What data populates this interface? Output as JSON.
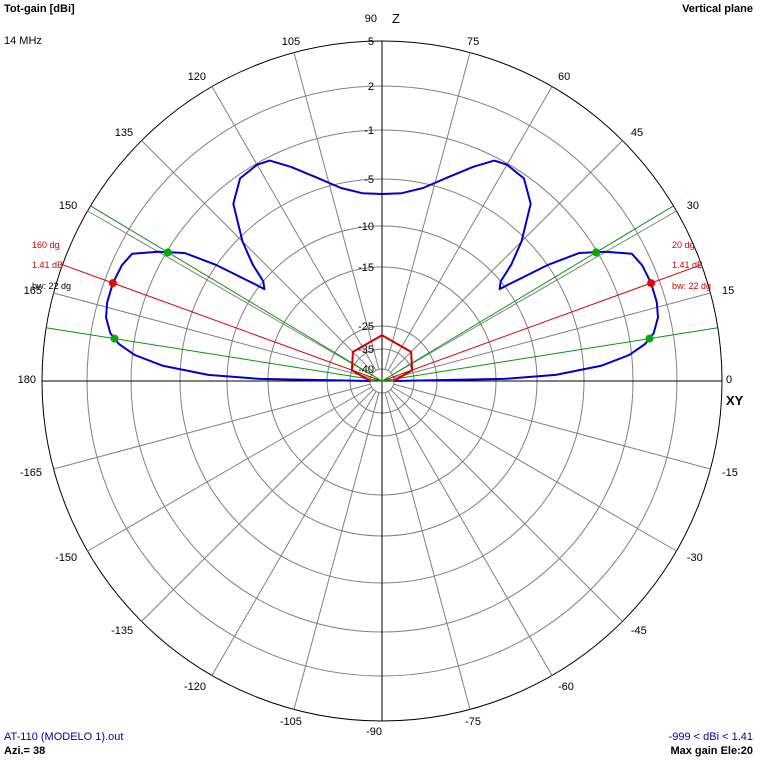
{
  "header": {
    "title": "Tot-gain [dBi]",
    "frequency": "14 MHz",
    "plane": "Vertical plane"
  },
  "footer": {
    "filename": "AT-110 (MODELO 1).out",
    "azimuth": "Azi.= 38",
    "gain_range": "-999 < dBi < 1.41",
    "max_gain": "Max gain Ele:20"
  },
  "chart_data": {
    "type": "polar-line",
    "title": "Tot-gain [dBi]",
    "angle_unit": "degrees",
    "radial_unit": "dBi",
    "radial_range": [
      -40,
      5
    ],
    "radial_ticks": [
      5,
      2,
      -1,
      -5,
      -10,
      -15,
      -25,
      -35,
      -40
    ],
    "radial_tick_labels": [
      "5",
      "2",
      "-1",
      "-5",
      "-10",
      "-15",
      "-25",
      "-35",
      "-40"
    ],
    "angle_ticks": [
      0,
      15,
      30,
      45,
      60,
      75,
      90,
      105,
      120,
      135,
      150,
      165,
      180,
      -165,
      -150,
      -135,
      -120,
      -105,
      -90,
      -75,
      -60,
      -45,
      -30,
      -15
    ],
    "angle_tick_labels": [
      "0",
      "15",
      "30",
      "45",
      "60",
      "75",
      "90",
      "105",
      "120",
      "135",
      "150",
      "165",
      "180",
      "-165",
      "-150",
      "-135",
      "-120",
      "-105",
      "-90",
      "-75",
      "-60",
      "-45",
      "-30",
      "-15"
    ],
    "axis_labels": {
      "up": "Z",
      "right": "XY"
    },
    "series": [
      {
        "color": "#0000cc",
        "points": [
          [
            0,
            -40
          ],
          [
            1,
            -14
          ],
          [
            2,
            -8
          ],
          [
            4,
            -3.5
          ],
          [
            6,
            -1.2
          ],
          [
            8,
            0
          ],
          [
            10,
            0.7
          ],
          [
            13,
            1.2
          ],
          [
            16,
            1.38
          ],
          [
            20,
            1.41
          ],
          [
            24,
            1.3
          ],
          [
            27,
            1
          ],
          [
            30,
            -0.5
          ],
          [
            33,
            -2.3
          ],
          [
            35,
            -5
          ],
          [
            37,
            -9
          ],
          [
            38,
            -10.7
          ],
          [
            40,
            -10
          ],
          [
            42,
            -8
          ],
          [
            45,
            -5.5
          ],
          [
            50,
            -2.6
          ],
          [
            55,
            -1.3
          ],
          [
            60,
            -1.1
          ],
          [
            63,
            -1.3
          ],
          [
            67,
            -2.5
          ],
          [
            72,
            -4
          ],
          [
            78,
            -5.5
          ],
          [
            84,
            -6.4
          ],
          [
            90,
            -6.6
          ],
          [
            96,
            -6.4
          ],
          [
            102,
            -5.5
          ],
          [
            108,
            -4
          ],
          [
            113,
            -2.5
          ],
          [
            117,
            -1.3
          ],
          [
            120,
            -1.1
          ],
          [
            125,
            -1.3
          ],
          [
            130,
            -2.6
          ],
          [
            135,
            -5.5
          ],
          [
            138,
            -8
          ],
          [
            140,
            -10
          ],
          [
            142,
            -10.7
          ],
          [
            143,
            -9
          ],
          [
            145,
            -5
          ],
          [
            147,
            -2.3
          ],
          [
            150,
            -0.5
          ],
          [
            153,
            1
          ],
          [
            156,
            1.3
          ],
          [
            160,
            1.41
          ],
          [
            164,
            1.38
          ],
          [
            167,
            1.2
          ],
          [
            170,
            0.7
          ],
          [
            172,
            0
          ],
          [
            174,
            -1.2
          ],
          [
            176,
            -3.5
          ],
          [
            178,
            -8
          ],
          [
            179,
            -14
          ],
          [
            180,
            -40
          ]
        ]
      },
      {
        "color": "#cc0000",
        "points": [
          [
            0,
            -40
          ],
          [
            20,
            -35
          ],
          [
            45,
            -31
          ],
          [
            90,
            -29
          ],
          [
            135,
            -31
          ],
          [
            160,
            -35
          ],
          [
            180,
            -40
          ]
        ]
      }
    ],
    "beamwidth_markers": [
      {
        "angle": 20,
        "gain": 1.41,
        "beamwidth": 22,
        "half_power_angles": [
          9,
          31
        ]
      },
      {
        "angle": 160,
        "gain": 1.41,
        "beamwidth": 22,
        "half_power_angles": [
          149,
          171
        ]
      }
    ],
    "marker_labels": [
      {
        "side": "right",
        "angle_text": "20 dg",
        "gain_text": "1.41 dB",
        "bw_text": "bw: 22 dg"
      },
      {
        "side": "left",
        "angle_text": "160 dg",
        "gain_text": "1.41 dB",
        "bw_text": "bw: 22 dg"
      }
    ],
    "legend": "none",
    "grid": true
  }
}
